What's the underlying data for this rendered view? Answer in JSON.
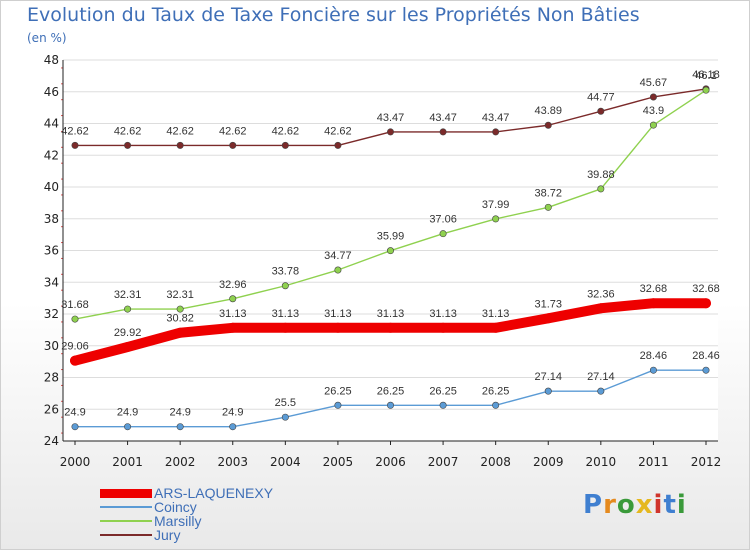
{
  "title": "Evolution du Taux de Taxe Foncière sur les Propriétés Non Bâties",
  "subtitle": "(en %)",
  "logo": {
    "text": "Proxiti",
    "colors": [
      "#3f7fd0",
      "#e58a1f",
      "#3a9a3a",
      "#e5b81f",
      "#d0342c",
      "#3f7fd0",
      "#3a9a3a"
    ]
  },
  "chart_data": {
    "type": "line",
    "title": "Evolution du Taux de Taxe Foncière sur les Propriétés Non Bâties",
    "ylabel": "(en %)",
    "xlabel": "",
    "x": [
      "2000",
      "2001",
      "2002",
      "2003",
      "2004",
      "2005",
      "2006",
      "2007",
      "2008",
      "2009",
      "2010",
      "2011",
      "2012"
    ],
    "ylim": [
      24,
      48
    ],
    "yticks": [
      "24",
      "26",
      "28",
      "30",
      "32",
      "34",
      "36",
      "38",
      "40",
      "42",
      "44",
      "46",
      "48"
    ],
    "grid": "horizontal",
    "legend_position": "bottom-left",
    "series": [
      {
        "name": "ARS-LAQUENEXY",
        "color": "#ee0000",
        "values": [
          29.06,
          29.92,
          30.82,
          31.13,
          31.13,
          31.13,
          31.13,
          31.13,
          31.13,
          31.73,
          32.36,
          32.68,
          32.68
        ],
        "labels": [
          "29.06",
          "29.92",
          "30.82",
          "31.13",
          "31.13",
          "31.13",
          "31.13",
          "31.13",
          "31.13",
          "31.73",
          "32.36",
          "32.68",
          "32.68"
        ]
      },
      {
        "name": "Coincy",
        "color": "#5b9bd5",
        "values": [
          24.9,
          24.9,
          24.9,
          24.9,
          25.5,
          26.25,
          26.25,
          26.25,
          26.25,
          27.14,
          27.14,
          28.46,
          28.46
        ],
        "labels": [
          "24.9",
          "24.9",
          "24.9",
          "24.9",
          "25.5",
          "26.25",
          "26.25",
          "26.25",
          "26.25",
          "27.14",
          "27.14",
          "28.46",
          "28.46"
        ]
      },
      {
        "name": "Marsilly",
        "color": "#8fd14f",
        "values": [
          31.68,
          32.31,
          32.31,
          32.96,
          33.78,
          34.77,
          35.99,
          37.06,
          37.99,
          38.72,
          39.88,
          43.9,
          46.1
        ],
        "labels": [
          "31.68",
          "32.31",
          "32.31",
          "32.96",
          "33.78",
          "34.77",
          "35.99",
          "37.06",
          "37.99",
          "38.72",
          "39.88",
          "43.9",
          "46.1"
        ]
      },
      {
        "name": "Jury",
        "color": "#7b2a2a",
        "values": [
          42.62,
          42.62,
          42.62,
          42.62,
          42.62,
          42.62,
          43.47,
          43.47,
          43.47,
          43.89,
          44.77,
          45.67,
          46.18
        ],
        "labels": [
          "42.62",
          "42.62",
          "42.62",
          "42.62",
          "42.62",
          "42.62",
          "43.47",
          "43.47",
          "43.47",
          "43.89",
          "44.77",
          "45.67",
          "46.18"
        ]
      }
    ]
  }
}
